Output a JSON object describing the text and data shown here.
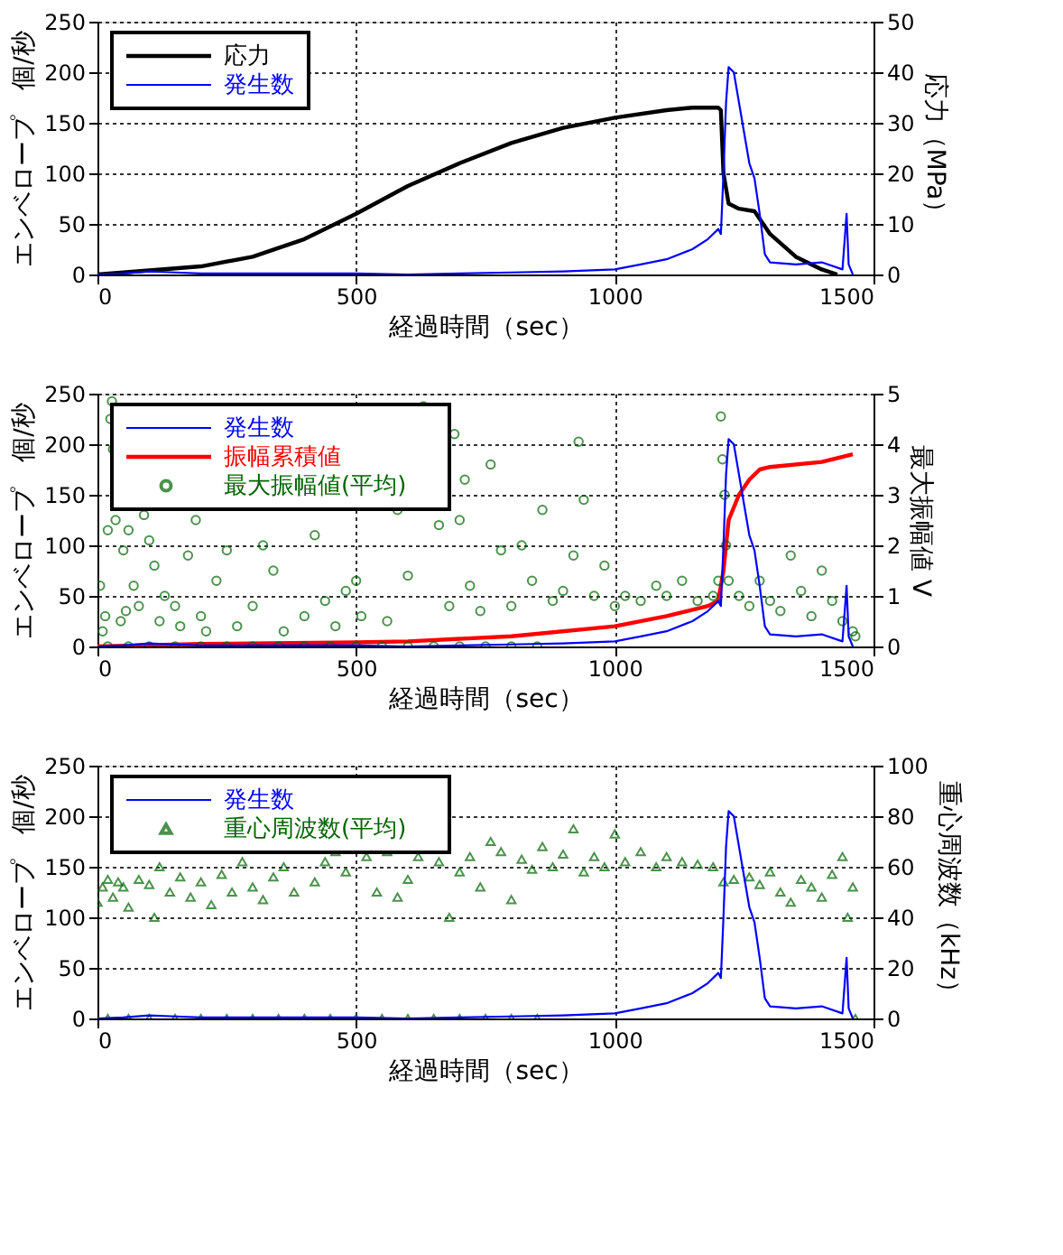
{
  "chart_data": [
    {
      "type": "line",
      "xlabel": "経過時間（sec）",
      "ylabel": "エンベロープ　個/秒",
      "y2label": "応力（MPa）",
      "xlim": [
        0,
        1500
      ],
      "xticks": [
        0,
        500,
        1000,
        1500
      ],
      "ylim": [
        0,
        250
      ],
      "yticks": [
        0,
        50,
        100,
        150,
        200,
        250
      ],
      "y2lim": [
        0,
        50
      ],
      "y2ticks": [
        0,
        10,
        20,
        30,
        40,
        50
      ],
      "grid": true,
      "legend": "top left",
      "series": [
        {
          "name": "応力",
          "color": "#000000",
          "axis": "y2",
          "x": [
            0,
            100,
            200,
            300,
            400,
            500,
            600,
            700,
            800,
            900,
            1000,
            1100,
            1150,
            1200,
            1205,
            1210,
            1220,
            1240,
            1270,
            1300,
            1350,
            1400,
            1430
          ],
          "values": [
            0,
            0.8,
            1.6,
            3.5,
            7,
            12,
            17.5,
            22,
            26,
            29,
            31,
            32.5,
            33,
            33,
            32.5,
            20,
            14,
            13,
            12.5,
            8,
            3.5,
            1,
            0
          ]
        },
        {
          "name": "発生数",
          "color": "#0000ff",
          "x": [
            0,
            50,
            100,
            150,
            200,
            300,
            400,
            500,
            600,
            700,
            800,
            900,
            1000,
            1050,
            1100,
            1150,
            1180,
            1200,
            1205,
            1210,
            1215,
            1220,
            1230,
            1240,
            1250,
            1260,
            1270,
            1280,
            1290,
            1300,
            1350,
            1400,
            1440,
            1448,
            1452,
            1460
          ],
          "values": [
            0,
            1,
            3,
            2,
            1,
            1,
            1,
            1,
            0,
            1,
            2,
            3,
            5,
            10,
            15,
            25,
            35,
            45,
            40,
            100,
            170,
            205,
            200,
            170,
            140,
            110,
            95,
            60,
            20,
            12,
            10,
            12,
            5,
            60,
            10,
            0
          ]
        }
      ]
    },
    {
      "type": "line",
      "xlabel": "経過時間（sec）",
      "ylabel": "エンベロープ　個/秒",
      "y2label": "最大振幅値 V",
      "xlim": [
        0,
        1500
      ],
      "xticks": [
        0,
        500,
        1000,
        1500
      ],
      "ylim": [
        0,
        250
      ],
      "yticks": [
        0,
        50,
        100,
        150,
        200,
        250
      ],
      "y2lim": [
        0,
        5
      ],
      "y2ticks": [
        0,
        1,
        2,
        3,
        4,
        5
      ],
      "grid": true,
      "legend": "top left",
      "series": [
        {
          "name": "発生数",
          "color": "#0000ff",
          "x": [
            0,
            50,
            100,
            150,
            200,
            300,
            400,
            500,
            600,
            700,
            800,
            900,
            1000,
            1050,
            1100,
            1150,
            1180,
            1200,
            1205,
            1210,
            1215,
            1220,
            1230,
            1240,
            1250,
            1260,
            1270,
            1280,
            1290,
            1300,
            1350,
            1400,
            1440,
            1448,
            1452,
            1460
          ],
          "values": [
            0,
            1,
            3,
            2,
            1,
            1,
            1,
            1,
            0,
            1,
            2,
            3,
            5,
            10,
            15,
            25,
            35,
            45,
            40,
            100,
            170,
            205,
            200,
            170,
            140,
            110,
            95,
            60,
            20,
            12,
            10,
            12,
            5,
            60,
            10,
            0
          ]
        },
        {
          "name": "振幅累積値",
          "color": "#ff0000",
          "axis": "y2",
          "x": [
            0,
            200,
            500,
            600,
            800,
            1000,
            1100,
            1180,
            1200,
            1210,
            1220,
            1240,
            1260,
            1280,
            1300,
            1400,
            1460
          ],
          "values": [
            0,
            0.05,
            0.08,
            0.1,
            0.2,
            0.4,
            0.6,
            0.8,
            0.9,
            1.5,
            2.5,
            3.0,
            3.3,
            3.5,
            3.55,
            3.65,
            3.8
          ]
        },
        {
          "name": "最大振幅値(平均)",
          "color": "#006400",
          "type": "scatter",
          "axis": "y2",
          "marker": "circle",
          "x": [
            20,
            60,
            100,
            150,
            200,
            250,
            300,
            350,
            400,
            450,
            500,
            550,
            600,
            650,
            700,
            750,
            800,
            850,
            5,
            10,
            15,
            20,
            25,
            28,
            30,
            35,
            40,
            45,
            50,
            55,
            60,
            70,
            80,
            90,
            100,
            110,
            120,
            130,
            150,
            160,
            175,
            190,
            200,
            210,
            230,
            250,
            270,
            300,
            320,
            340,
            360,
            380,
            400,
            420,
            440,
            460,
            480,
            500,
            510,
            540,
            560,
            580,
            600,
            620,
            630,
            640,
            650,
            660,
            680,
            690,
            700,
            710,
            720,
            740,
            760,
            780,
            800,
            820,
            840,
            860,
            880,
            900,
            920,
            930,
            940,
            960,
            980,
            1000,
            1020,
            1050,
            1080,
            1100,
            1130,
            1160,
            1190,
            1200,
            1205,
            1208,
            1212,
            1215,
            1220,
            1240,
            1260,
            1280,
            1300,
            1320,
            1340,
            1360,
            1380,
            1400,
            1420,
            1440,
            1460,
            1465
          ],
          "values": [
            0,
            0,
            0,
            0,
            0,
            0,
            0,
            0,
            0,
            0,
            0,
            0,
            0,
            0,
            0,
            0,
            0,
            0,
            1.2,
            0.3,
            0.6,
            2.3,
            4.5,
            4.85,
            3.9,
            2.5,
            null,
            0.5,
            1.9,
            0.7,
            2.3,
            1.2,
            0.8,
            2.6,
            2.1,
            1.6,
            0.5,
            1.0,
            0.8,
            0.4,
            1.8,
            2.5,
            0.6,
            0.3,
            1.3,
            1.9,
            0.4,
            0.8,
            2.0,
            1.5,
            0.3,
            null,
            0.6,
            2.2,
            0.9,
            0.4,
            1.1,
            1.3,
            0.6,
            null,
            0.5,
            2.7,
            1.4,
            null,
            4.75,
            null,
            null,
            2.4,
            0.8,
            4.2,
            2.5,
            3.3,
            1.2,
            0.7,
            3.6,
            1.9,
            0.8,
            2.0,
            1.3,
            2.7,
            0.9,
            1.1,
            1.8,
            4.05,
            2.9,
            1.0,
            1.6,
            0.8,
            1.0,
            0.9,
            1.2,
            1.0,
            1.3,
            0.9,
            1.0,
            1.3,
            4.55,
            3.7,
            3.0,
            2.0,
            1.3,
            1.0,
            0.8,
            1.3,
            0.9,
            0.7,
            1.8,
            1.1,
            0.6,
            1.5,
            0.9,
            0.5,
            0.3,
            0.2
          ]
        }
      ]
    },
    {
      "type": "line",
      "xlabel": "経過時間（sec）",
      "ylabel": "エンベロープ　個/秒",
      "y2label": "重心周波数（kHz）",
      "xlim": [
        0,
        1500
      ],
      "xticks": [
        0,
        500,
        1000,
        1500
      ],
      "ylim": [
        0,
        250
      ],
      "yticks": [
        0,
        50,
        100,
        150,
        200,
        250
      ],
      "y2lim": [
        0,
        100
      ],
      "y2ticks": [
        0,
        20,
        40,
        60,
        80,
        100
      ],
      "grid": true,
      "legend": "top left",
      "series": [
        {
          "name": "発生数",
          "color": "#0000ff",
          "x": [
            0,
            50,
            100,
            150,
            200,
            300,
            400,
            500,
            600,
            700,
            800,
            900,
            1000,
            1050,
            1100,
            1150,
            1180,
            1200,
            1205,
            1210,
            1215,
            1220,
            1230,
            1240,
            1250,
            1260,
            1270,
            1280,
            1290,
            1300,
            1350,
            1400,
            1440,
            1448,
            1452,
            1460
          ],
          "values": [
            0,
            1,
            3,
            2,
            1,
            1,
            1,
            1,
            0,
            1,
            2,
            3,
            5,
            10,
            15,
            25,
            35,
            45,
            40,
            100,
            170,
            205,
            200,
            170,
            140,
            110,
            95,
            60,
            20,
            12,
            10,
            12,
            5,
            60,
            10,
            0
          ]
        },
        {
          "name": "重心周波数(平均)",
          "color": "#006400",
          "type": "scatter",
          "axis": "y2",
          "marker": "triangle",
          "x": [
            20,
            60,
            100,
            150,
            200,
            250,
            300,
            350,
            400,
            450,
            500,
            550,
            600,
            650,
            700,
            750,
            800,
            850,
            1465,
            0,
            10,
            20,
            30,
            40,
            50,
            60,
            80,
            100,
            110,
            120,
            140,
            160,
            180,
            200,
            220,
            240,
            260,
            280,
            300,
            320,
            340,
            360,
            380,
            400,
            420,
            440,
            460,
            480,
            500,
            520,
            540,
            560,
            580,
            600,
            620,
            640,
            660,
            680,
            700,
            720,
            740,
            760,
            780,
            800,
            820,
            840,
            860,
            880,
            900,
            920,
            940,
            960,
            980,
            1000,
            1020,
            1050,
            1080,
            1100,
            1130,
            1160,
            1190,
            1210,
            1230,
            1260,
            1280,
            1300,
            1320,
            1340,
            1360,
            1380,
            1400,
            1420,
            1440,
            1450,
            1460
          ],
          "values": [
            0,
            0,
            0,
            0,
            0,
            0,
            0,
            0,
            0,
            0,
            0,
            0,
            0,
            0,
            0,
            0,
            0,
            0,
            0,
            46,
            52,
            55,
            48,
            54,
            52,
            44,
            55,
            53,
            40,
            60,
            50,
            56,
            48,
            54,
            45,
            57,
            50,
            62,
            52,
            47,
            56,
            60,
            50,
            null,
            54,
            62,
            66,
            58,
            null,
            64,
            50,
            66,
            48,
            55,
            64,
            null,
            62,
            40,
            58,
            64,
            52,
            70,
            66,
            47,
            63,
            59,
            68,
            60,
            65,
            75,
            58,
            64,
            60,
            73,
            62,
            66,
            60,
            64,
            62,
            61,
            60,
            54,
            55,
            56,
            53,
            58,
            50,
            46,
            55,
            52,
            48,
            57,
            64,
            40,
            52
          ]
        }
      ]
    }
  ]
}
